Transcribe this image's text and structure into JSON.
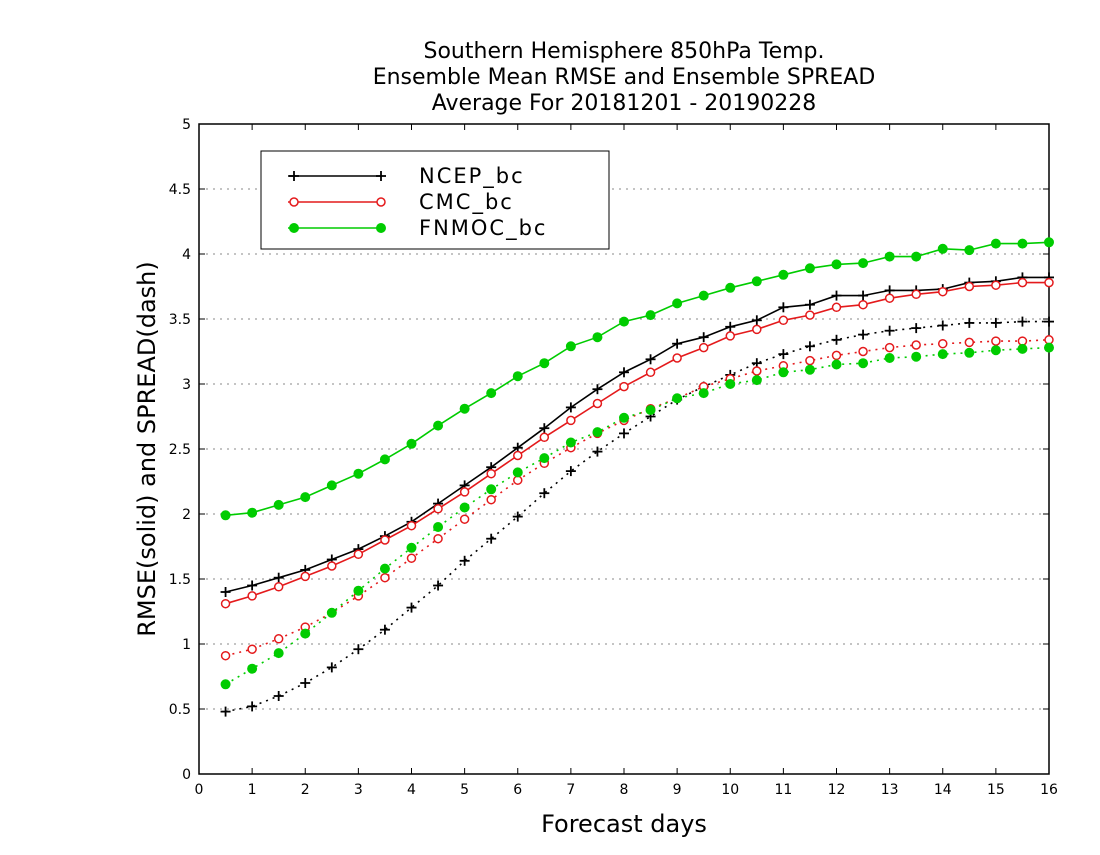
{
  "chart_data": {
    "type": "line",
    "title_lines": [
      "Southern Hemisphere 850hPa Temp.",
      "Ensemble Mean RMSE and Ensemble SPREAD",
      "Average For 20181201 - 20190228"
    ],
    "xlabel": "Forecast days",
    "ylabel": "RMSE(solid) and SPREAD(dash)",
    "xlim": [
      0,
      16
    ],
    "ylim": [
      0,
      5
    ],
    "x_ticks": [
      "0",
      "1",
      "2",
      "3",
      "4",
      "5",
      "6",
      "7",
      "8",
      "9",
      "10",
      "11",
      "12",
      "13",
      "14",
      "15",
      "16"
    ],
    "y_ticks": [
      "0",
      "0.5",
      "1",
      "1.5",
      "2",
      "2.5",
      "3",
      "3.5",
      "4",
      "4.5",
      "5"
    ],
    "grid": "horizontal-dotted",
    "legend_position": "top-left",
    "x": [
      0.5,
      1,
      1.5,
      2,
      2.5,
      3,
      3.5,
      4,
      4.5,
      5,
      5.5,
      6,
      6.5,
      7,
      7.5,
      8,
      8.5,
      9,
      9.5,
      10,
      10.5,
      11,
      11.5,
      12,
      12.5,
      13,
      13.5,
      14,
      14.5,
      15,
      15.5,
      16
    ],
    "series": [
      {
        "name": "NCEP_bc",
        "color": "#000000",
        "marker": "plus",
        "rmse": [
          1.4,
          1.45,
          1.51,
          1.57,
          1.65,
          1.73,
          1.83,
          1.94,
          2.08,
          2.22,
          2.36,
          2.51,
          2.66,
          2.82,
          2.96,
          3.09,
          3.19,
          3.31,
          3.36,
          3.44,
          3.49,
          3.59,
          3.61,
          3.68,
          3.68,
          3.72,
          3.72,
          3.73,
          3.78,
          3.79,
          3.82,
          3.82
        ],
        "spread": [
          0.48,
          0.52,
          0.6,
          0.7,
          0.82,
          0.96,
          1.11,
          1.28,
          1.45,
          1.64,
          1.81,
          1.98,
          2.16,
          2.33,
          2.48,
          2.62,
          2.75,
          2.88,
          2.98,
          3.07,
          3.16,
          3.23,
          3.29,
          3.34,
          3.38,
          3.41,
          3.43,
          3.45,
          3.47,
          3.47,
          3.48,
          3.48
        ]
      },
      {
        "name": "CMC_bc",
        "color": "#e41a1c",
        "marker": "open-circle",
        "rmse": [
          1.31,
          1.37,
          1.44,
          1.52,
          1.6,
          1.69,
          1.8,
          1.91,
          2.04,
          2.17,
          2.31,
          2.45,
          2.59,
          2.72,
          2.85,
          2.98,
          3.09,
          3.2,
          3.28,
          3.37,
          3.42,
          3.49,
          3.53,
          3.59,
          3.61,
          3.66,
          3.69,
          3.71,
          3.75,
          3.76,
          3.78,
          3.78
        ],
        "spread": [
          0.91,
          0.96,
          1.04,
          1.13,
          1.24,
          1.37,
          1.51,
          1.66,
          1.81,
          1.96,
          2.11,
          2.26,
          2.39,
          2.51,
          2.62,
          2.72,
          2.81,
          2.89,
          2.98,
          3.04,
          3.1,
          3.14,
          3.18,
          3.22,
          3.25,
          3.28,
          3.3,
          3.31,
          3.32,
          3.33,
          3.33,
          3.34
        ]
      },
      {
        "name": "FNMOC_bc",
        "color": "#00cc00",
        "marker": "filled-circle",
        "rmse": [
          1.99,
          2.01,
          2.07,
          2.13,
          2.22,
          2.31,
          2.42,
          2.54,
          2.68,
          2.81,
          2.93,
          3.06,
          3.16,
          3.29,
          3.36,
          3.48,
          3.53,
          3.62,
          3.68,
          3.74,
          3.79,
          3.84,
          3.89,
          3.92,
          3.93,
          3.98,
          3.98,
          4.04,
          4.03,
          4.08,
          4.08,
          4.09
        ],
        "spread": [
          0.69,
          0.81,
          0.93,
          1.08,
          1.24,
          1.41,
          1.58,
          1.74,
          1.9,
          2.05,
          2.19,
          2.32,
          2.43,
          2.55,
          2.63,
          2.74,
          2.8,
          2.89,
          2.93,
          3.0,
          3.03,
          3.09,
          3.11,
          3.15,
          3.16,
          3.2,
          3.21,
          3.23,
          3.24,
          3.26,
          3.27,
          3.28
        ]
      }
    ]
  }
}
